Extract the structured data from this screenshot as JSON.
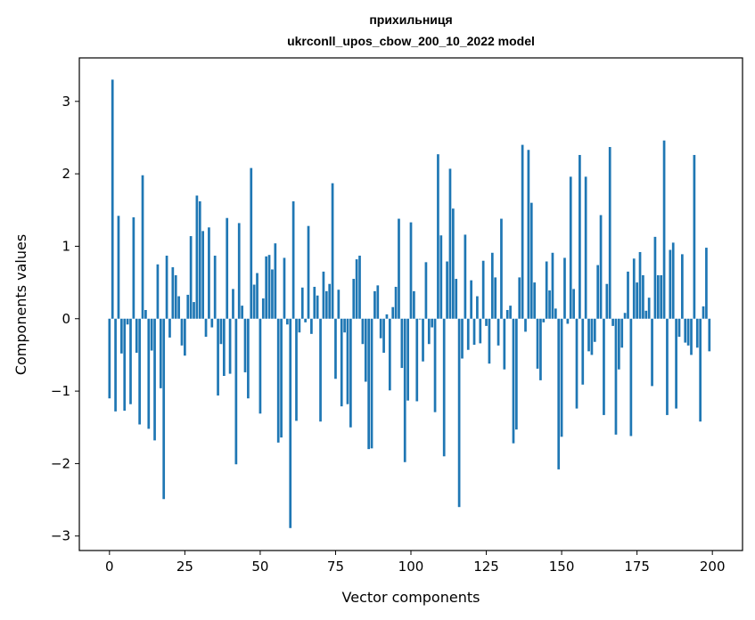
{
  "chart_data": {
    "type": "bar",
    "title": "прихильниця",
    "subtitle": "ukrconll_upos_cbow_200_10_2022 model",
    "xlabel": "Vector components",
    "ylabel": "Components values",
    "xlim": [
      -10,
      210
    ],
    "ylim": [
      -3.2,
      3.6
    ],
    "xticks": [
      0,
      25,
      50,
      75,
      100,
      125,
      150,
      175,
      200
    ],
    "yticks": [
      -3,
      -2,
      -1,
      0,
      1,
      2,
      3
    ],
    "ytick_labels": [
      "−3",
      "−2",
      "−1",
      "0",
      "1",
      "2",
      "3"
    ],
    "bar_color": "#1f77b4",
    "grid": false,
    "values": [
      -1.1,
      3.3,
      -1.28,
      1.42,
      -0.48,
      -1.27,
      -0.08,
      -1.18,
      1.4,
      -0.47,
      -1.46,
      1.98,
      0.12,
      -1.52,
      -0.44,
      -1.68,
      0.75,
      -0.96,
      -2.49,
      0.87,
      -0.26,
      0.71,
      0.6,
      0.31,
      -0.37,
      -0.51,
      0.33,
      1.14,
      0.23,
      1.7,
      1.62,
      1.21,
      -0.25,
      1.26,
      -0.12,
      0.87,
      -1.06,
      -0.35,
      -0.79,
      1.39,
      -0.76,
      0.41,
      -2.01,
      1.32,
      0.18,
      -0.74,
      -1.1,
      2.08,
      0.47,
      0.63,
      -1.31,
      0.28,
      0.86,
      0.88,
      0.68,
      1.04,
      -1.71,
      -1.64,
      0.84,
      -0.08,
      -2.89,
      1.62,
      -1.41,
      -0.19,
      0.43,
      -0.05,
      1.28,
      -0.21,
      0.44,
      0.32,
      -1.42,
      0.65,
      0.38,
      0.48,
      1.87,
      -0.83,
      0.4,
      -1.21,
      -0.19,
      -1.18,
      -1.5,
      0.55,
      0.82,
      0.87,
      -0.35,
      -0.87,
      -1.8,
      -1.79,
      0.38,
      0.46,
      -0.27,
      -0.47,
      0.06,
      -0.99,
      0.16,
      0.44,
      1.38,
      -0.68,
      -1.98,
      -1.13,
      1.33,
      0.38,
      -1.14,
      -0.01,
      -0.59,
      0.78,
      -0.35,
      -0.12,
      -1.29,
      2.27,
      1.15,
      -1.9,
      0.79,
      2.07,
      1.52,
      0.55,
      -2.6,
      -0.55,
      1.16,
      -0.43,
      0.53,
      -0.36,
      0.31,
      -0.34,
      0.8,
      -0.1,
      -0.62,
      0.91,
      0.57,
      -0.37,
      1.38,
      -0.7,
      0.12,
      0.18,
      -1.72,
      -1.53,
      0.57,
      2.4,
      -0.18,
      2.33,
      1.6,
      0.5,
      -0.69,
      -0.85,
      -0.05,
      0.79,
      0.39,
      0.91,
      0.14,
      -2.08,
      -1.63,
      0.84,
      -0.07,
      1.96,
      0.41,
      -1.24,
      2.26,
      -0.91,
      1.96,
      -0.45,
      -0.5,
      -0.32,
      0.74,
      1.43,
      -1.33,
      0.48,
      2.37,
      -0.1,
      -1.6,
      -0.7,
      -0.4,
      0.08,
      0.65,
      -1.62,
      0.83,
      0.5,
      0.92,
      0.6,
      0.11,
      0.29,
      -0.93,
      1.13,
      0.6,
      0.6,
      2.46,
      -1.33,
      0.95,
      1.05,
      -1.24,
      -0.25,
      0.89,
      -0.33,
      -0.37,
      -0.5,
      2.26,
      -0.4,
      -1.42,
      0.17,
      0.98,
      -0.45
    ]
  }
}
